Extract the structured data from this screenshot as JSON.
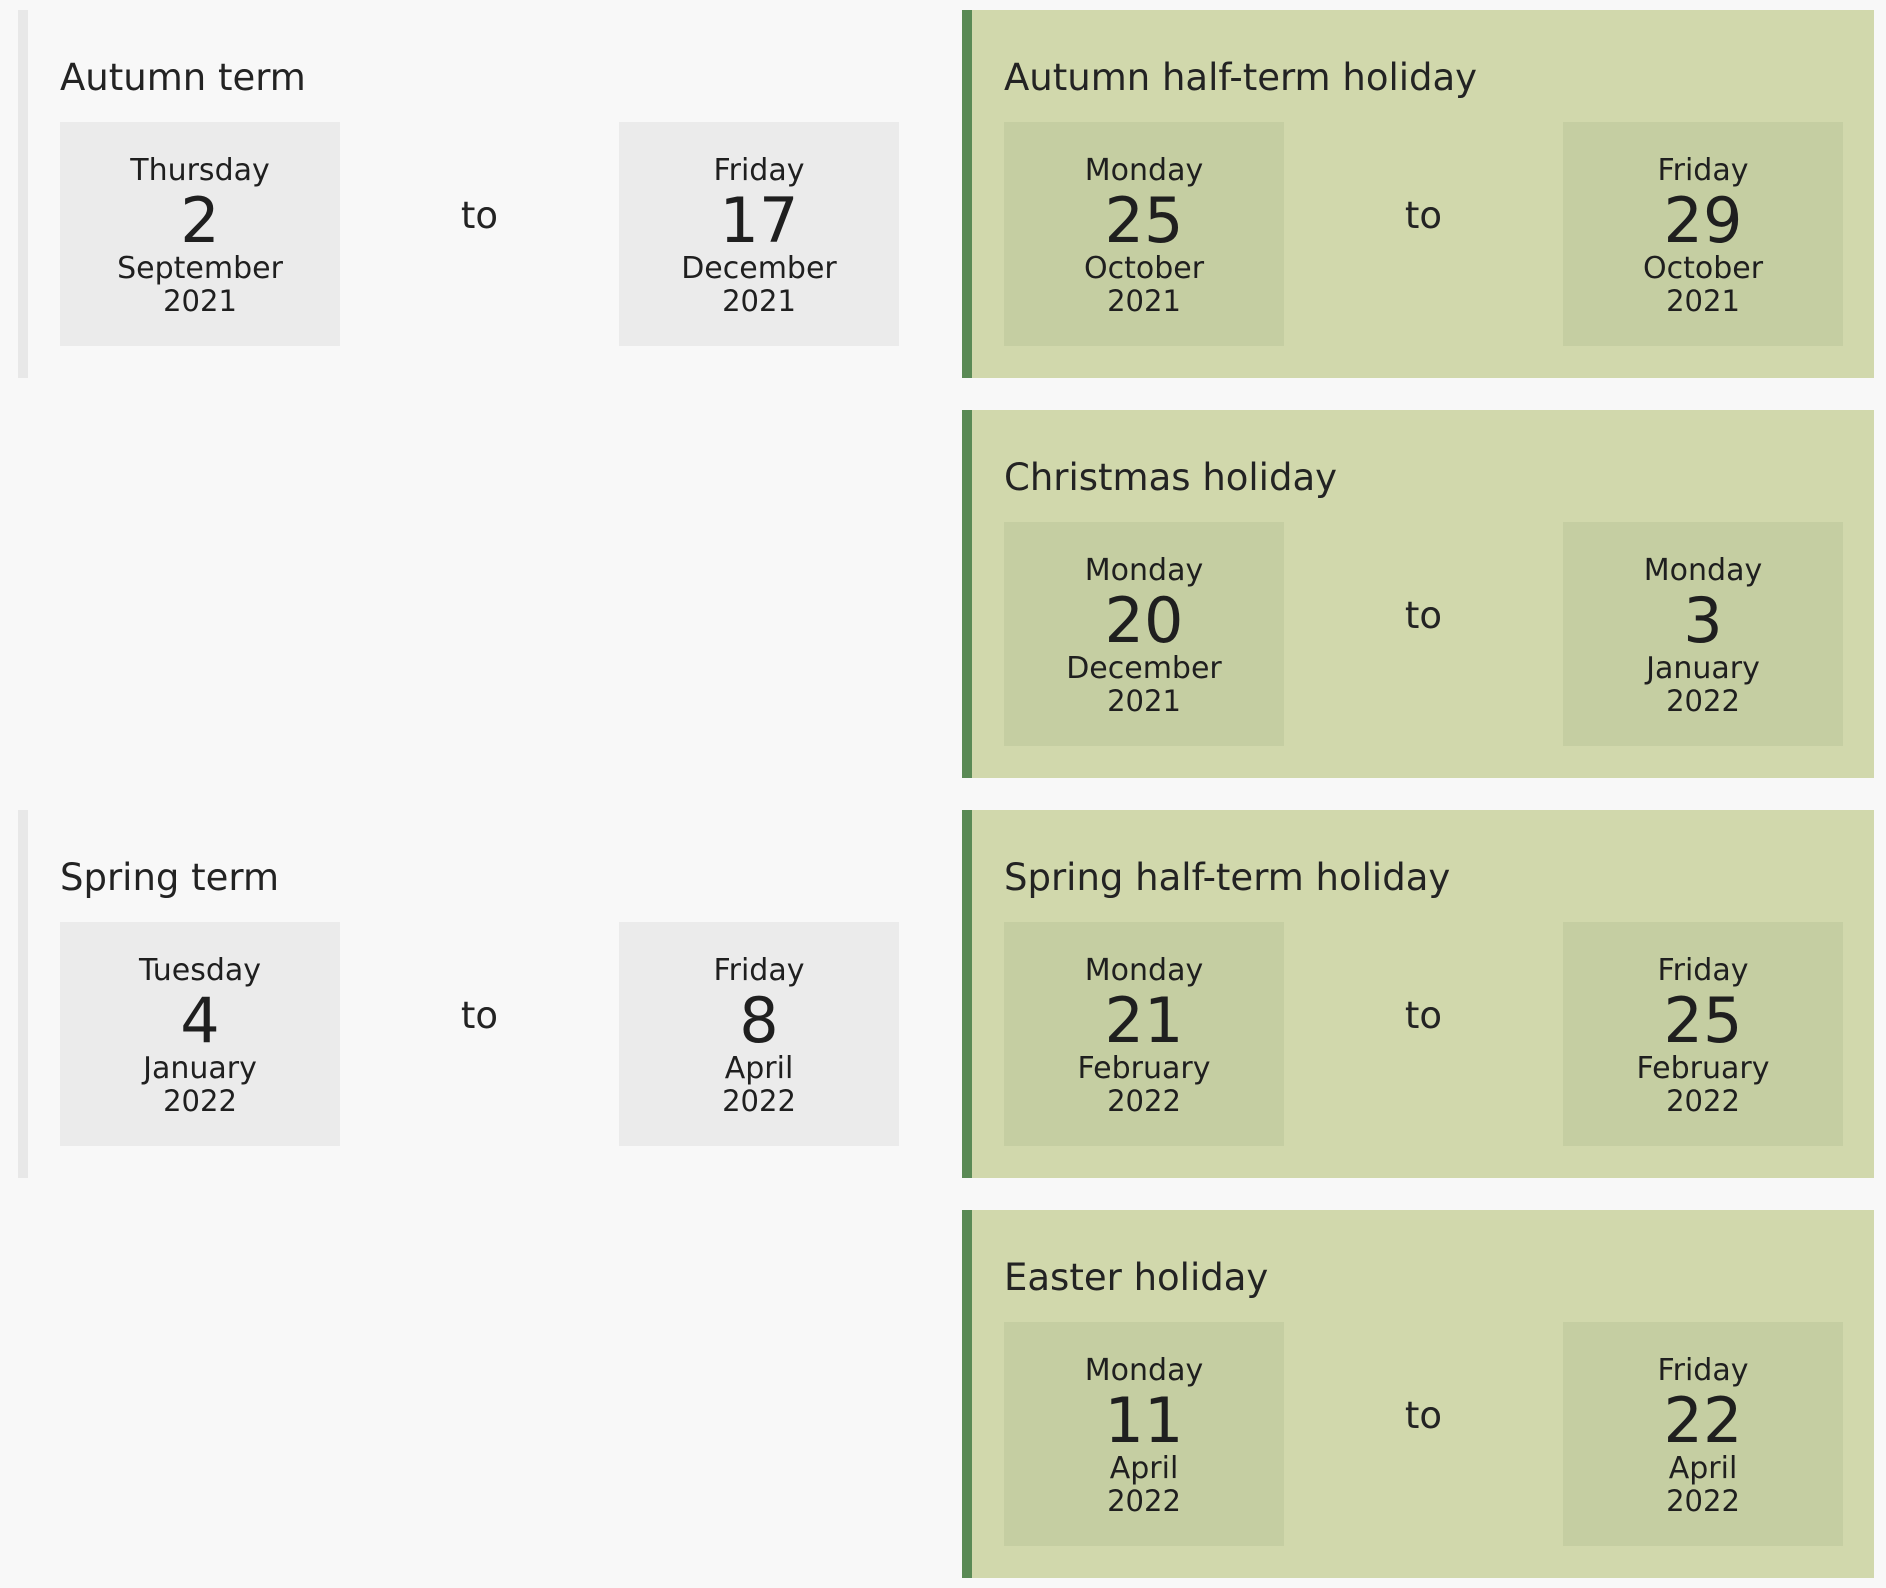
{
  "blocks": [
    {
      "kind": "term",
      "title": "Autumn term",
      "separator": "to",
      "start": {
        "weekday": "Thursday",
        "day": "2",
        "month": "September",
        "year": "2021"
      },
      "end": {
        "weekday": "Friday",
        "day": "17",
        "month": "December",
        "year": "2021"
      }
    },
    {
      "kind": "holiday",
      "title": "Autumn half-term holiday",
      "separator": "to",
      "start": {
        "weekday": "Monday",
        "day": "25",
        "month": "October",
        "year": "2021"
      },
      "end": {
        "weekday": "Friday",
        "day": "29",
        "month": "October",
        "year": "2021"
      }
    },
    {
      "kind": "holiday",
      "title": "Christmas holiday",
      "separator": "to",
      "start": {
        "weekday": "Monday",
        "day": "20",
        "month": "December",
        "year": "2021"
      },
      "end": {
        "weekday": "Monday",
        "day": "3",
        "month": "January",
        "year": "2022"
      }
    },
    {
      "kind": "term",
      "title": "Spring term",
      "separator": "to",
      "start": {
        "weekday": "Tuesday",
        "day": "4",
        "month": "January",
        "year": "2022"
      },
      "end": {
        "weekday": "Friday",
        "day": "8",
        "month": "April",
        "year": "2022"
      }
    },
    {
      "kind": "holiday",
      "title": "Spring half-term holiday",
      "separator": "to",
      "start": {
        "weekday": "Monday",
        "day": "21",
        "month": "February",
        "year": "2022"
      },
      "end": {
        "weekday": "Friday",
        "day": "25",
        "month": "February",
        "year": "2022"
      }
    },
    {
      "kind": "holiday",
      "title": "Easter holiday",
      "separator": "to",
      "start": {
        "weekday": "Monday",
        "day": "11",
        "month": "April",
        "year": "2022"
      },
      "end": {
        "weekday": "Friday",
        "day": "22",
        "month": "April",
        "year": "2022"
      }
    }
  ],
  "colors": {
    "page_background": "#f8f8f8",
    "term_date_box": "#ebebeb",
    "term_border": "#e8e8e8",
    "holiday_background": "#d1d8ac",
    "holiday_date_box": "#c5cea2",
    "holiday_border": "#5a8a55",
    "text": "#232323"
  }
}
